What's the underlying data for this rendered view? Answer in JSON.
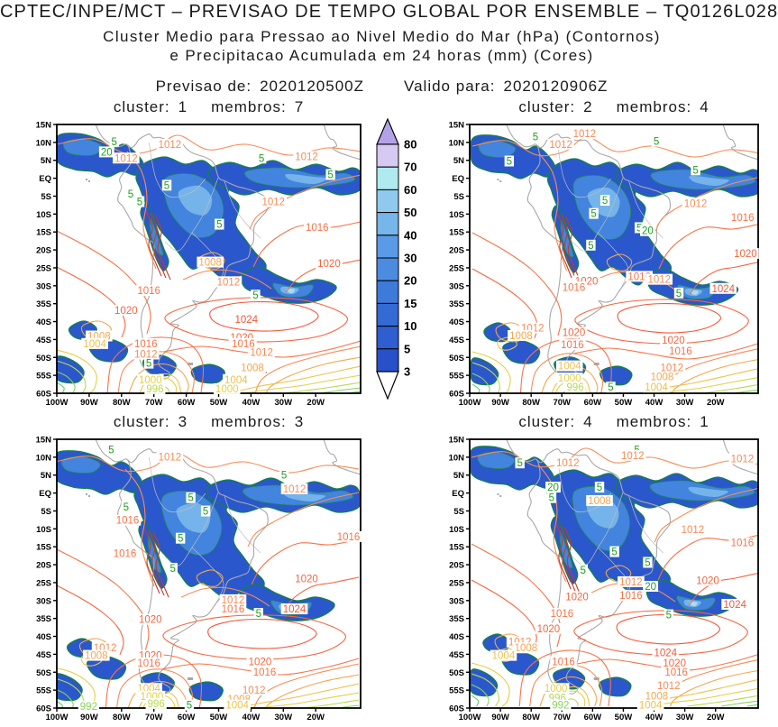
{
  "header": {
    "title": "CPTEC/INPE/MCT – PREVISAO DE TEMPO GLOBAL POR ENSEMBLE – TQ0126L028",
    "subtitle1": "Cluster Medio para Pressao ao Nivel Medio do Mar (hPa) (Contornos)",
    "subtitle2": "e Precipitacao Acumulada em 24 horas (mm) (Cores)",
    "forecast_label": "Previsao de:",
    "forecast_value": "2020120500Z",
    "valid_label": "Valido para:",
    "valid_value": "2020120906Z"
  },
  "chart_data": {
    "type": "heatmap",
    "description": "Four-panel ensemble cluster mean: sea level pressure contours (hPa) and 24h accumulated precipitation shading (mm) over South America, 100W-10W, 15N-60S",
    "axes": {
      "lat_ticks": [
        "15N",
        "10N",
        "5N",
        "EQ",
        "5S",
        "10S",
        "15S",
        "20S",
        "25S",
        "30S",
        "35S",
        "40S",
        "45S",
        "50S",
        "55S",
        "60S"
      ],
      "lon_ticks": [
        "100W",
        "90W",
        "80W",
        "70W",
        "60W",
        "50W",
        "40W",
        "30W",
        "20W"
      ]
    },
    "colorbar": {
      "tick_values": [
        80,
        70,
        60,
        50,
        40,
        30,
        20,
        15,
        10,
        5,
        3
      ],
      "segment_colors": [
        "#d6c9f2",
        "#aeeaee",
        "#8fcaee",
        "#76b6ea",
        "#5a9ae6",
        "#4b8ce0",
        "#3d7ada",
        "#336ad4",
        "#2e5ed0",
        "#2850c8"
      ],
      "over_color": "#b4a2e8",
      "under_color": "#ffffff"
    },
    "pressure_contour_interval_hPa": 4,
    "isobar_colors": {
      "1024": "#f25638",
      "1020": "#f4653f",
      "1016": "#f57448",
      "1012": "#f78b55",
      "1008": "#f3a74e",
      "1004": "#ecc14a",
      "1000": "#e2d044",
      "996": "#b8d94e",
      "992": "#86d35e",
      "988": "#5fcc70",
      "andes": "#c43a28"
    },
    "rain_label_color": "#1f9e1f",
    "map_colors": {
      "coast": "#a8a8a8",
      "border": "#bdbdbd",
      "rain_fill_levels": [
        "#2b57cc",
        "#4384de",
        "#74b4ea",
        "#a6dcf4"
      ],
      "rain_outline": "#12804a"
    },
    "panels": [
      {
        "cluster_label": "cluster:",
        "cluster_value": "1",
        "membros_label": "membros:",
        "membros_value": "7",
        "contour_labels": [
          [
            "5",
            "r",
            18.9,
            6.3
          ],
          [
            "1012",
            "p",
            37.2,
            7.4
          ],
          [
            "20",
            "r",
            16.4,
            10.2
          ],
          [
            "1012",
            "p",
            22.8,
            12.5
          ],
          [
            "5",
            "r",
            67.4,
            12.5
          ],
          [
            "1012",
            "p",
            82.2,
            11.9
          ],
          [
            "5",
            "r",
            90.1,
            18.6
          ],
          [
            "5",
            "r",
            36.2,
            22.6
          ],
          [
            "5",
            "r",
            24.3,
            25.9
          ],
          [
            "5",
            "r",
            27.3,
            28.7
          ],
          [
            "1012",
            "p",
            71.3,
            28.7
          ],
          [
            "5",
            "r",
            53.5,
            37.1
          ],
          [
            "1016",
            "p",
            85.7,
            38.3
          ],
          [
            "1008",
            "p",
            50.5,
            51.2
          ],
          [
            "1020",
            "p",
            89.6,
            51.7
          ],
          [
            "1012",
            "p",
            56.5,
            58.5
          ],
          [
            "1016",
            "p",
            30.3,
            61.8
          ],
          [
            "5",
            "r",
            65.4,
            63.5
          ],
          [
            "1020",
            "p",
            22.8,
            69.1
          ],
          [
            "1024",
            "p",
            62.4,
            72.5
          ],
          [
            "1008",
            "p",
            13.9,
            78.7
          ],
          [
            "1004",
            "p",
            12.5,
            81.5
          ],
          [
            "1020",
            "p",
            60.9,
            79.2
          ],
          [
            "1016",
            "p",
            61.4,
            81.5
          ],
          [
            "1016",
            "p",
            29.3,
            81.5
          ],
          [
            "1012",
            "p",
            67.4,
            84.8
          ],
          [
            "1012",
            "p",
            29.3,
            85.4
          ],
          [
            "5",
            "r",
            30.3,
            88.8
          ],
          [
            "1008",
            "p",
            64.4,
            90.5
          ],
          [
            "1000",
            "p",
            30.8,
            94.9
          ],
          [
            "1004",
            "p",
            59,
            94.9
          ],
          [
            "996",
            "p",
            32.3,
            98.3
          ],
          [
            "1000",
            "p",
            56,
            98.3
          ]
        ]
      },
      {
        "cluster_label": "cluster:",
        "cluster_value": "2",
        "membros_label": "membros:",
        "membros_value": "4",
        "contour_labels": [
          [
            "1012",
            "p",
            39.8,
            3.4
          ],
          [
            "1012",
            "p",
            31.6,
            7.3
          ],
          [
            "5",
            "r",
            22.8,
            4.5
          ],
          [
            "5",
            "r",
            64.7,
            6.2
          ],
          [
            "5",
            "r",
            13.7,
            13.6
          ],
          [
            "5",
            "r",
            78.3,
            16.9
          ],
          [
            "1012",
            "p",
            78.3,
            29.4
          ],
          [
            "1016",
            "p",
            94.6,
            34.5
          ],
          [
            "5",
            "r",
            46.9,
            28.2
          ],
          [
            "5",
            "r",
            43,
            33.1
          ],
          [
            "5",
            "r",
            58.8,
            38.4
          ],
          [
            "20",
            "r",
            61.7,
            39.5
          ],
          [
            "5",
            "r",
            42,
            44.9
          ],
          [
            "1020",
            "p",
            95.6,
            48
          ],
          [
            "1016",
            "p",
            58.8,
            56.5
          ],
          [
            "1012",
            "p",
            65.7,
            57.6
          ],
          [
            "1020",
            "p",
            40.5,
            58.2
          ],
          [
            "1016",
            "p",
            36.1,
            60.5
          ],
          [
            "1024",
            "p",
            87.9,
            61
          ],
          [
            "5",
            "r",
            72.5,
            62.7
          ],
          [
            "1012",
            "p",
            21.8,
            75.7
          ],
          [
            "1008",
            "p",
            17.8,
            78.5
          ],
          [
            "1020",
            "p",
            36.1,
            77.4
          ],
          [
            "1016",
            "p",
            35.6,
            81.9
          ],
          [
            "1020",
            "p",
            70.6,
            80.2
          ],
          [
            "1016",
            "p",
            73.1,
            84.2
          ],
          [
            "1012",
            "p",
            70.1,
            90.4
          ],
          [
            "1004",
            "p",
            34.6,
            89.8
          ],
          [
            "1000",
            "p",
            34.6,
            94.3
          ],
          [
            "996",
            "p",
            36.6,
            97.7
          ],
          [
            "1008",
            "p",
            66.7,
            93.8
          ],
          [
            "1004",
            "p",
            64.7,
            97.7
          ],
          [
            "5",
            "r",
            48.9,
            97.7
          ]
        ]
      },
      {
        "cluster_label": "cluster:",
        "cluster_value": "3",
        "membros_label": "membros:",
        "membros_value": "3",
        "contour_labels": [
          [
            "5",
            "r",
            17.9,
            3.8
          ],
          [
            "1012",
            "p",
            37.2,
            6.6
          ],
          [
            "5",
            "r",
            74.8,
            13.3
          ],
          [
            "1012",
            "p",
            78.2,
            18.4
          ],
          [
            "5",
            "r",
            22.8,
            25.1
          ],
          [
            "1016",
            "p",
            23.3,
            30.1
          ],
          [
            "5",
            "r",
            44.1,
            21.7
          ],
          [
            "5",
            "r",
            49,
            26.7
          ],
          [
            "5",
            "r",
            40.7,
            36.8
          ],
          [
            "1016",
            "p",
            22.4,
            42.4
          ],
          [
            "1016",
            "p",
            96,
            36.2
          ],
          [
            "5",
            "r",
            38.2,
            48
          ],
          [
            "1020",
            "p",
            82.2,
            51.9
          ],
          [
            "1012",
            "p",
            58,
            59.7
          ],
          [
            "1016",
            "p",
            58,
            63.1
          ],
          [
            "1024",
            "p",
            78.2,
            63.1
          ],
          [
            "5",
            "r",
            66.4,
            64.8
          ],
          [
            "1020",
            "p",
            30.8,
            67
          ],
          [
            "1012",
            "p",
            15.9,
            77.6
          ],
          [
            "1008",
            "p",
            13,
            80.4
          ],
          [
            "1020",
            "p",
            30.8,
            80.4
          ],
          [
            "1016",
            "p",
            30.3,
            83.2
          ],
          [
            "1020",
            "p",
            66.9,
            82.7
          ],
          [
            "1016",
            "p",
            68.4,
            86.6
          ],
          [
            "1004",
            "p",
            30.3,
            92.7
          ],
          [
            "1000",
            "p",
            31.3,
            95.6
          ],
          [
            "996",
            "p",
            32.7,
            98.3
          ],
          [
            "992",
            "p",
            10.5,
            99.4
          ],
          [
            "1012",
            "p",
            64.9,
            93.3
          ],
          [
            "1008",
            "p",
            60,
            96.6
          ],
          [
            "1004",
            "p",
            59.4,
            98.9
          ],
          [
            "5",
            "r",
            43.6,
            98.9
          ]
        ]
      },
      {
        "cluster_label": "cluster:",
        "cluster_value": "4",
        "membros_label": "membros:",
        "membros_value": "1",
        "contour_labels": [
          [
            "5",
            "r",
            58,
            3.8
          ],
          [
            "1012",
            "p",
            56.5,
            6
          ],
          [
            "1012",
            "p",
            94.5,
            7.2
          ],
          [
            "1012",
            "p",
            34,
            8.8
          ],
          [
            "5",
            "r",
            17.4,
            8.8
          ],
          [
            "20",
            "r",
            28.9,
            17.8
          ],
          [
            "5",
            "r",
            28.4,
            21.7
          ],
          [
            "5",
            "r",
            45,
            17.8
          ],
          [
            "1008",
            "p",
            45,
            22.8
          ],
          [
            "1012",
            "p",
            77.3,
            33.5
          ],
          [
            "1016",
            "p",
            94.5,
            38.5
          ],
          [
            "5",
            "r",
            50.2,
            41.8
          ],
          [
            "5",
            "r",
            61.7,
            45.8
          ],
          [
            "5",
            "r",
            39.3,
            48.6
          ],
          [
            "1012",
            "p",
            55.9,
            53
          ],
          [
            "20",
            "r",
            62.7,
            54.7
          ],
          [
            "1016",
            "p",
            55.9,
            58.1
          ],
          [
            "1020",
            "p",
            82.5,
            52.5
          ],
          [
            "1020",
            "p",
            37.2,
            58.6
          ],
          [
            "1024",
            "p",
            91.9,
            61.4
          ],
          [
            "5",
            "r",
            69,
            65.3
          ],
          [
            "1016",
            "p",
            32,
            64.8
          ],
          [
            "1020",
            "p",
            27.3,
            70.4
          ],
          [
            "1012",
            "p",
            17.4,
            75.4
          ],
          [
            "1008",
            "p",
            19.5,
            77.6
          ],
          [
            "1004",
            "p",
            11.7,
            80.4
          ],
          [
            "1024",
            "p",
            67.9,
            79.3
          ],
          [
            "1016",
            "p",
            32.5,
            82.7
          ],
          [
            "1020",
            "p",
            71,
            83.2
          ],
          [
            "1016",
            "p",
            71.6,
            86.6
          ],
          [
            "1012",
            "p",
            69,
            91.6
          ],
          [
            "1008",
            "p",
            64.8,
            95.5
          ],
          [
            "1000",
            "p",
            29.9,
            92.7
          ],
          [
            "996",
            "p",
            30.4,
            96.1
          ],
          [
            "992",
            "p",
            31.5,
            98.9
          ],
          [
            "1004",
            "p",
            62.7,
            98.9
          ]
        ]
      }
    ]
  }
}
